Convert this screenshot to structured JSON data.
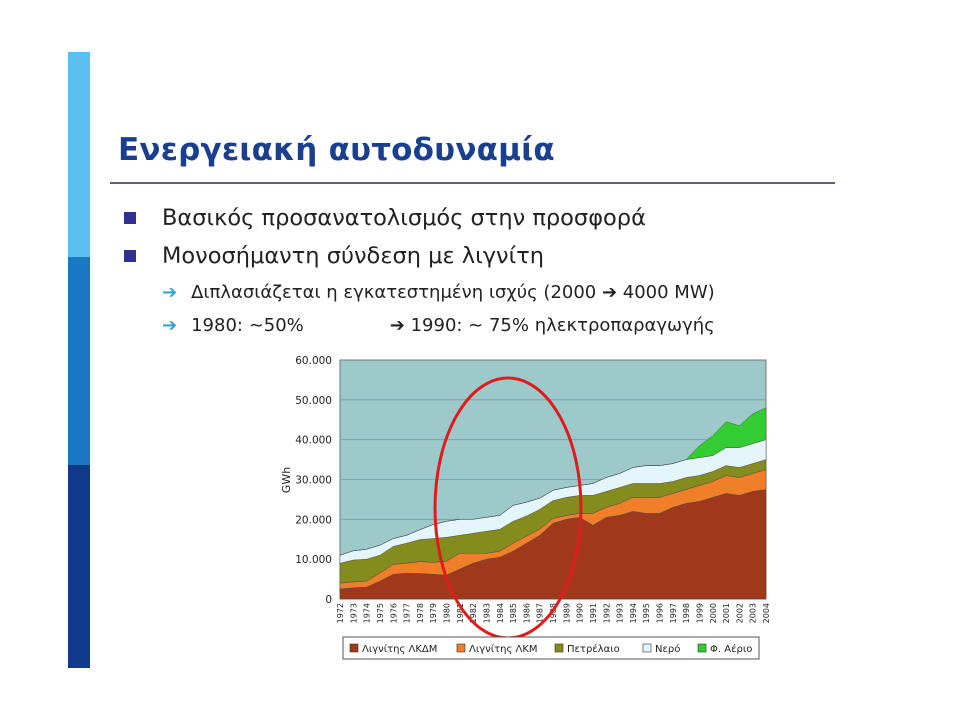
{
  "slide": {
    "title": "Ενεργειακή αυτοδυναμία",
    "bullets": [
      "Βασικός προσανατολισμός στην προσφορά",
      "Μονοσήμαντη σύνδεση με λιγνίτη"
    ],
    "sub_bullets": [
      {
        "text": "Διπλασιάζεται η εγκατεστημένη ισχύς (2000 ➔ 4000 MW)"
      },
      {
        "left": "1980: ∼50%",
        "right": "➔  1990: ∼ 75% ηλεκτροπαραγωγής"
      }
    ],
    "accent_colors": [
      "#5bc0f0",
      "#1a78c2",
      "#0f3a8c"
    ],
    "title_color": "#1b3f8f"
  },
  "chart_data": {
    "type": "area",
    "stacked": true,
    "ylabel": "GWh",
    "ylim": [
      0,
      60000
    ],
    "yticks": [
      "0",
      "10.000",
      "20.000",
      "30.000",
      "40.000",
      "50.000",
      "60.000"
    ],
    "x": [
      "1972",
      "1973",
      "1974",
      "1975",
      "1976",
      "1977",
      "1978",
      "1979",
      "1980",
      "1981",
      "1982",
      "1983",
      "1984",
      "1985",
      "1986",
      "1987",
      "1988",
      "1989",
      "1990",
      "1991",
      "1992",
      "1993",
      "1994",
      "1995",
      "1996",
      "1997",
      "1998",
      "1999",
      "2000",
      "2001",
      "2002",
      "2003",
      "2004"
    ],
    "series": [
      {
        "name": "Λιγνίτης ΛΚΔΜ",
        "color": "#a0391c",
        "values": [
          2500,
          2800,
          3000,
          4500,
          6200,
          6500,
          6400,
          6200,
          6000,
          7500,
          9000,
          10000,
          10500,
          12000,
          14000,
          16000,
          19000,
          20000,
          20500,
          18500,
          20500,
          21000,
          22000,
          21500,
          21500,
          23000,
          24000,
          24500,
          25500,
          26500,
          26000,
          27000,
          27500
        ]
      },
      {
        "name": "Λιγνίτης ΛΚΜ",
        "color": "#f07f2a",
        "values": [
          1500,
          1500,
          1500,
          2000,
          2500,
          2500,
          3000,
          3000,
          3500,
          4000,
          2500,
          1500,
          1500,
          2000,
          1800,
          1500,
          1200,
          1000,
          1000,
          3000,
          2500,
          3000,
          3500,
          4000,
          4000,
          3500,
          3500,
          4000,
          4000,
          4500,
          4500,
          4500,
          5000
        ]
      },
      {
        "name": "Πετρέλαιο",
        "color": "#838c1d",
        "values": [
          5000,
          5500,
          5500,
          4500,
          4500,
          5000,
          5500,
          6000,
          6000,
          4500,
          5000,
          5500,
          5500,
          5500,
          5000,
          5000,
          4500,
          4500,
          4500,
          4500,
          4000,
          4000,
          3500,
          3500,
          3500,
          3000,
          3000,
          2500,
          2500,
          2500,
          2500,
          2500,
          2500
        ]
      },
      {
        "name": "Νερό",
        "color": "#e4f6fb",
        "values": [
          2000,
          2300,
          2500,
          2500,
          2000,
          2000,
          2500,
          3500,
          4000,
          4000,
          3500,
          3500,
          3500,
          4000,
          3500,
          2800,
          2600,
          2500,
          2500,
          3000,
          3500,
          3500,
          4000,
          4500,
          4500,
          4500,
          4500,
          4500,
          4000,
          4500,
          5000,
          5000,
          5000
        ]
      },
      {
        "name": "Φ. Αέριο",
        "color": "#33cc33",
        "values": [
          0,
          0,
          0,
          0,
          0,
          0,
          0,
          0,
          0,
          0,
          0,
          0,
          0,
          0,
          0,
          0,
          0,
          0,
          0,
          0,
          0,
          0,
          0,
          0,
          0,
          0,
          0,
          3000,
          5000,
          6500,
          5500,
          7500,
          8000
        ]
      }
    ],
    "annotation": "red ellipse highlighting 1981–1990"
  }
}
